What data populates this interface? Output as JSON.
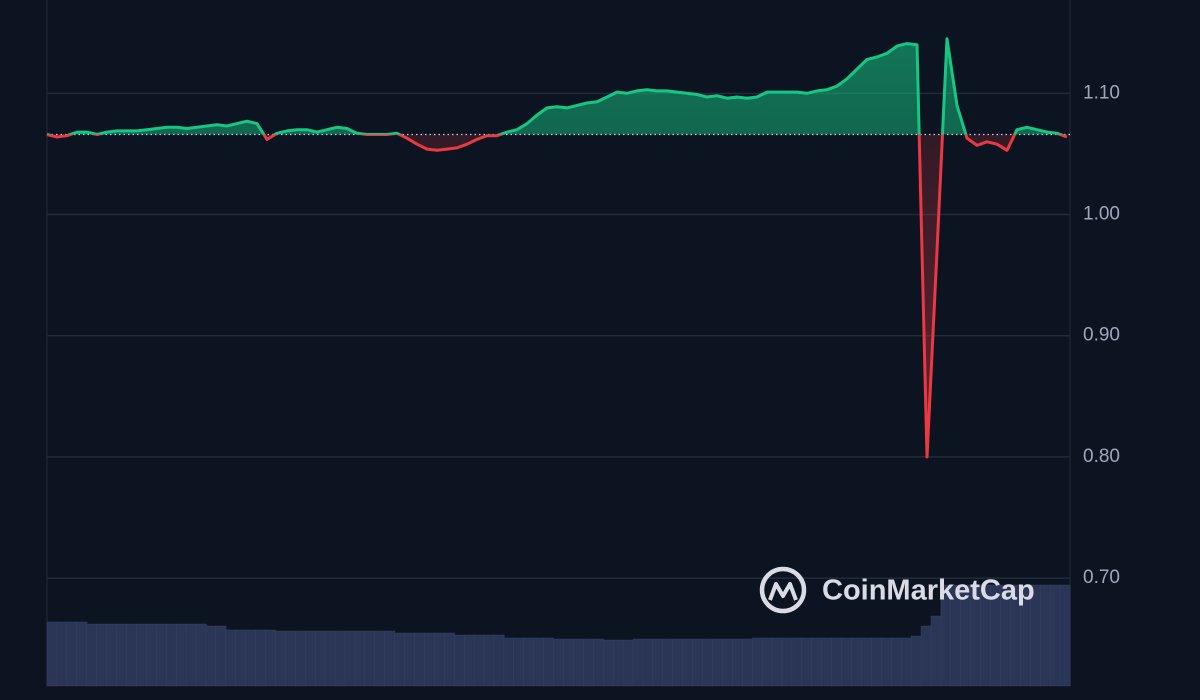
{
  "chart_data": {
    "type": "line",
    "categories": [
      null,
      null,
      null,
      null,
      null,
      null,
      null,
      null,
      null,
      null,
      null,
      null,
      null,
      null,
      null,
      null,
      null,
      null,
      null,
      null,
      null,
      null,
      null,
      null,
      null,
      null,
      null,
      null,
      null,
      null,
      null,
      null,
      null,
      null,
      null,
      null,
      null,
      null,
      null,
      null,
      null,
      null,
      null,
      null,
      null,
      null,
      null,
      null,
      null,
      null,
      null,
      null,
      null,
      null,
      null,
      null,
      null,
      null,
      null,
      null,
      null,
      null,
      null,
      null,
      null,
      null,
      null,
      null,
      null,
      null,
      null,
      null,
      null,
      null,
      null,
      null,
      null,
      null,
      null,
      null,
      null,
      null,
      null,
      null,
      null,
      null,
      null,
      null,
      null,
      null,
      null,
      null,
      null,
      null,
      null,
      null,
      null,
      null,
      null,
      null,
      null,
      null,
      null
    ],
    "series": [
      {
        "up_color": "#16c784",
        "down_color": "#ea3943",
        "values": [
          1.066,
          1.064,
          1.065,
          1.068,
          1.068,
          1.066,
          1.068,
          1.069,
          1.069,
          1.069,
          1.07,
          1.071,
          1.072,
          1.072,
          1.071,
          1.072,
          1.073,
          1.074,
          1.073,
          1.075,
          1.077,
          1.075,
          1.062,
          1.067,
          1.069,
          1.07,
          1.07,
          1.068,
          1.07,
          1.072,
          1.071,
          1.067,
          1.066,
          1.066,
          1.066,
          1.067,
          1.063,
          1.058,
          1.054,
          1.053,
          1.054,
          1.055,
          1.058,
          1.062,
          1.065,
          1.065,
          1.068,
          1.07,
          1.075,
          1.082,
          1.088,
          1.089,
          1.088,
          1.09,
          1.092,
          1.093,
          1.097,
          1.101,
          1.1,
          1.102,
          1.103,
          1.102,
          1.102,
          1.101,
          1.1,
          1.099,
          1.097,
          1.098,
          1.096,
          1.097,
          1.096,
          1.097,
          1.101,
          1.101,
          1.101,
          1.101,
          1.1,
          1.102,
          1.103,
          1.106,
          1.112,
          1.12,
          1.128,
          1.13,
          1.133,
          1.139,
          1.141,
          1.14,
          0.8,
          0.97,
          1.145,
          1.09,
          1.063,
          1.057,
          1.06,
          1.058,
          1.053,
          1.07,
          1.072,
          1.07,
          1.068,
          1.067,
          1.064
        ]
      }
    ],
    "baseline": 1.066,
    "volume": {
      "color": "#2b3556",
      "values": [
        64,
        64,
        64,
        64,
        62,
        62,
        62,
        62,
        62,
        62,
        62,
        62,
        62,
        62,
        62,
        62,
        60,
        60,
        56,
        56,
        56,
        56,
        56,
        55,
        55,
        55,
        55,
        55,
        55,
        55,
        55,
        55,
        55,
        55,
        55,
        53,
        53,
        53,
        53,
        53,
        53,
        51,
        51,
        51,
        51,
        51,
        48,
        48,
        48,
        48,
        48,
        47,
        47,
        47,
        47,
        47,
        46,
        46,
        46,
        47,
        47,
        47,
        47,
        47,
        47,
        47,
        47,
        47,
        47,
        47,
        47,
        48,
        48,
        48,
        48,
        48,
        48,
        48,
        48,
        48,
        48,
        48,
        48,
        48,
        48,
        48,
        48,
        50,
        60,
        70,
        101,
        101,
        101,
        101,
        101,
        101,
        101,
        101,
        101,
        101,
        101,
        101,
        101
      ],
      "lim": [
        0,
        110
      ]
    },
    "ylim": [
      0.611,
      1.177
    ],
    "yticks": [
      {
        "value": 0.7,
        "label": "0.70"
      },
      {
        "value": 0.8,
        "label": "0.80"
      },
      {
        "value": 0.9,
        "label": "0.90"
      },
      {
        "value": 1.0,
        "label": "1.00"
      },
      {
        "value": 1.1,
        "label": "1.10"
      }
    ],
    "grid": true,
    "watermark": "CoinMarketCap"
  }
}
